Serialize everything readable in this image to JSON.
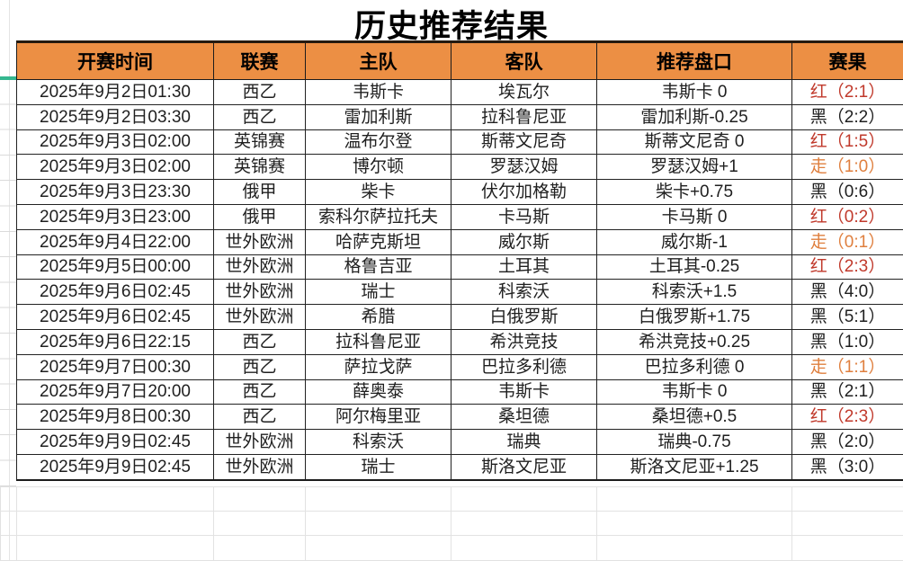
{
  "title": "历史推荐结果",
  "colors": {
    "header_bg": "#EC8F44",
    "result_red": "#C0392B",
    "result_black": "#1F1F1F",
    "result_walk": "#DF7F3E",
    "table_border": "#1C1C1C",
    "faint_grid": "#E2E2E2",
    "selection_accent": "#35B78F"
  },
  "table": {
    "headers": [
      "开赛时间",
      "联赛",
      "主队",
      "客队",
      "推荐盘口",
      "赛果"
    ],
    "rows": [
      {
        "time": "2025年9月2日01:30",
        "league": "西乙",
        "home": "韦斯卡",
        "away": "埃瓦尔",
        "handicap": "韦斯卡 0",
        "result": "红（2:1）",
        "result_type": "red"
      },
      {
        "time": "2025年9月2日03:30",
        "league": "西乙",
        "home": "雷加利斯",
        "away": "拉科鲁尼亚",
        "handicap": "雷加利斯-0.25",
        "result": "黑（2:2）",
        "result_type": "black"
      },
      {
        "time": "2025年9月3日02:00",
        "league": "英锦赛",
        "home": "温布尔登",
        "away": "斯蒂文尼奇",
        "handicap": "斯蒂文尼奇 0",
        "result": "红（1:5）",
        "result_type": "red"
      },
      {
        "time": "2025年9月3日02:00",
        "league": "英锦赛",
        "home": "博尔顿",
        "away": "罗瑟汉姆",
        "handicap": "罗瑟汉姆+1",
        "result": "走（1:0）",
        "result_type": "walk"
      },
      {
        "time": "2025年9月3日23:30",
        "league": "俄甲",
        "home": "柴卡",
        "away": "伏尔加格勒",
        "handicap": "柴卡+0.75",
        "result": "黑（0:6）",
        "result_type": "black"
      },
      {
        "time": "2025年9月3日23:00",
        "league": "俄甲",
        "home": "索科尔萨拉托夫",
        "away": "卡马斯",
        "handicap": "卡马斯 0",
        "result": "红（0:2）",
        "result_type": "red"
      },
      {
        "time": "2025年9月4日22:00",
        "league": "世外欧洲",
        "home": "哈萨克斯坦",
        "away": "威尔斯",
        "handicap": "威尔斯-1",
        "result": "走（0:1）",
        "result_type": "walk"
      },
      {
        "time": "2025年9月5日00:00",
        "league": "世外欧洲",
        "home": "格鲁吉亚",
        "away": "土耳其",
        "handicap": "土耳其-0.25",
        "result": "红（2:3）",
        "result_type": "red"
      },
      {
        "time": "2025年9月6日02:45",
        "league": "世外欧洲",
        "home": "瑞士",
        "away": "科索沃",
        "handicap": "科索沃+1.5",
        "result": "黑（4:0）",
        "result_type": "black"
      },
      {
        "time": "2025年9月6日02:45",
        "league": "世外欧洲",
        "home": "希腊",
        "away": "白俄罗斯",
        "handicap": "白俄罗斯+1.75",
        "result": "黑（5:1）",
        "result_type": "black"
      },
      {
        "time": "2025年9月6日22:15",
        "league": "西乙",
        "home": "拉科鲁尼亚",
        "away": "希洪竞技",
        "handicap": "希洪竞技+0.25",
        "result": "黑（1:0）",
        "result_type": "black"
      },
      {
        "time": "2025年9月7日00:30",
        "league": "西乙",
        "home": "萨拉戈萨",
        "away": "巴拉多利德",
        "handicap": "巴拉多利德 0",
        "result": "走（1:1）",
        "result_type": "walk"
      },
      {
        "time": "2025年9月7日20:00",
        "league": "西乙",
        "home": "薛奥泰",
        "away": "韦斯卡",
        "handicap": "韦斯卡 0",
        "result": "黑（2:1）",
        "result_type": "black"
      },
      {
        "time": "2025年9月8日00:30",
        "league": "西乙",
        "home": "阿尔梅里亚",
        "away": "桑坦德",
        "handicap": "桑坦德+0.5",
        "result": "红（2:3）",
        "result_type": "red"
      },
      {
        "time": "2025年9月9日02:45",
        "league": "世外欧洲",
        "home": "科索沃",
        "away": "瑞典",
        "handicap": "瑞典-0.75",
        "result": "黑（2:0）",
        "result_type": "black"
      },
      {
        "time": "2025年9月9日02:45",
        "league": "世外欧洲",
        "home": "瑞士",
        "away": "斯洛文尼亚",
        "handicap": "斯洛文尼亚+1.25",
        "result": "黑（3:0）",
        "result_type": "black"
      }
    ]
  },
  "empty_grid": {
    "rows": 3,
    "cols": 7
  }
}
